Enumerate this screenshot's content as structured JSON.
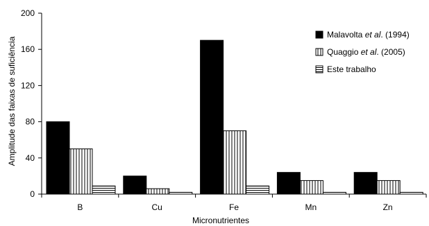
{
  "chart_data": {
    "type": "bar",
    "title": "",
    "xlabel": "Micronutrientes",
    "ylabel": "Amplitude das faixas de suficiência",
    "categories": [
      "B",
      "Cu",
      "Fe",
      "Mn",
      "Zn"
    ],
    "ylim": [
      0,
      200
    ],
    "yticks": [
      0,
      40,
      80,
      120,
      160,
      200
    ],
    "grid": false,
    "legend_position": "top-right",
    "series": [
      {
        "name_prefix": "Malavolta ",
        "name_italic": "et al",
        "name_suffix": ". (1994)",
        "fill": "solid-black",
        "values": [
          80,
          20,
          170,
          24,
          24
        ]
      },
      {
        "name_prefix": "Quaggio ",
        "name_italic": "et al",
        "name_suffix": ". (2005)",
        "fill": "vertical-stripes",
        "values": [
          50,
          6,
          70,
          15,
          15
        ]
      },
      {
        "name_prefix": "Este trabalho",
        "name_italic": "",
        "name_suffix": "",
        "fill": "horizontal-stripes",
        "values": [
          9,
          2,
          9,
          2,
          2
        ]
      }
    ]
  }
}
